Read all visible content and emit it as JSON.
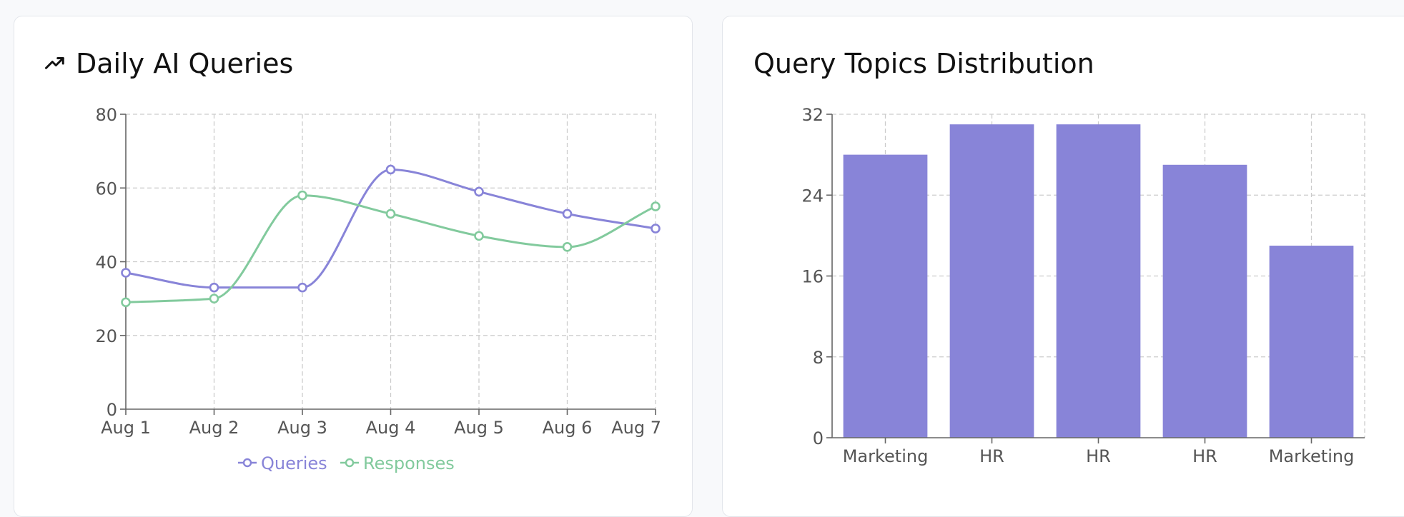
{
  "colors": {
    "queries": "#8884d8",
    "responses": "#82ca9d",
    "bars": "#8884d8",
    "grid": "#cccccc",
    "axis": "#666666"
  },
  "cards": {
    "left": {
      "title": "Daily AI Queries",
      "icon": "trending-up-icon"
    },
    "right": {
      "title": "Query Topics Distribution"
    }
  },
  "chart_data": [
    {
      "type": "line",
      "title": "Daily AI Queries",
      "x": [
        "Aug 1",
        "Aug 2",
        "Aug 3",
        "Aug 4",
        "Aug 5",
        "Aug 6",
        "Aug 7"
      ],
      "yticks": [
        0,
        20,
        40,
        60,
        80
      ],
      "ylim": [
        0,
        80
      ],
      "grid": true,
      "legend_position": "bottom",
      "series": [
        {
          "name": "Queries",
          "values": [
            37,
            33,
            33,
            65,
            59,
            53,
            49
          ]
        },
        {
          "name": "Responses",
          "values": [
            29,
            30,
            58,
            53,
            47,
            44,
            55
          ]
        }
      ]
    },
    {
      "type": "bar",
      "title": "Query Topics Distribution",
      "categories": [
        "Marketing",
        "HR",
        "HR",
        "HR",
        "Marketing"
      ],
      "values": [
        28,
        31,
        31,
        27,
        19
      ],
      "yticks": [
        0,
        8,
        16,
        24,
        32
      ],
      "ylim": [
        0,
        32
      ],
      "grid": true
    }
  ]
}
